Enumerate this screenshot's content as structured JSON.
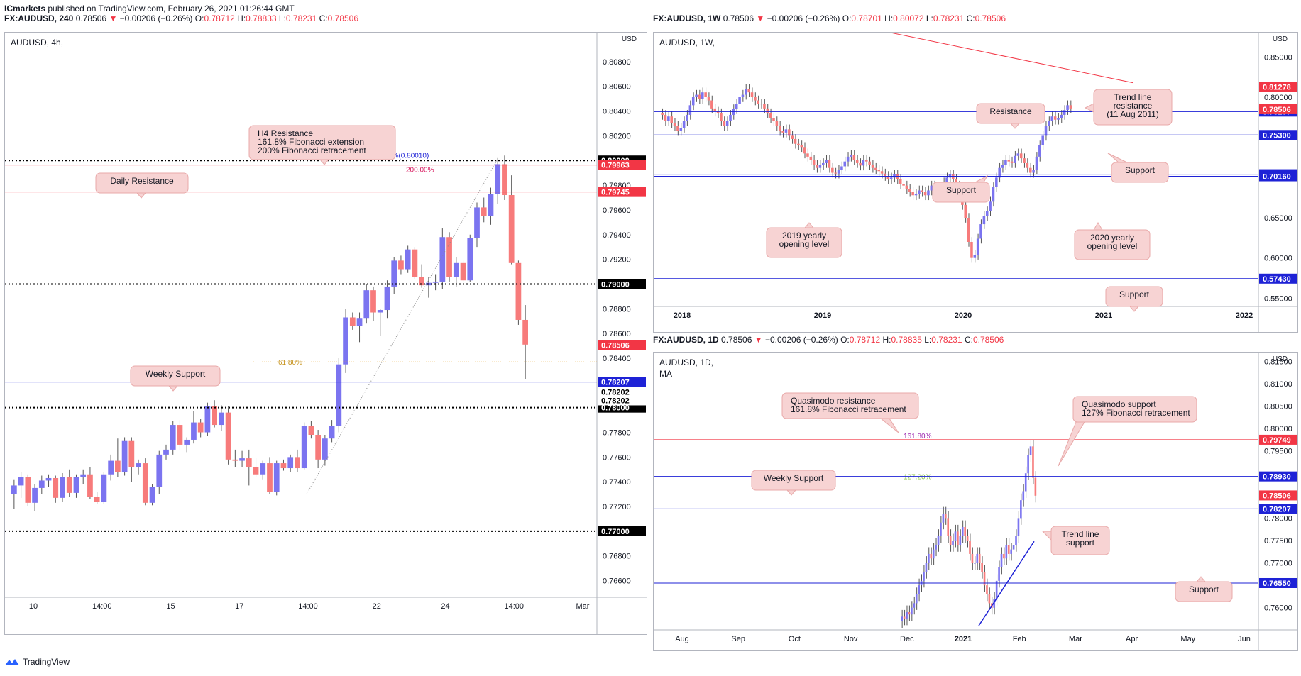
{
  "header": {
    "publisher": "ICmarkets",
    "published_text": "published on TradingView.com, February 26, 2021 01:26:44 GMT"
  },
  "footer": {
    "brand": "TradingView"
  },
  "colors": {
    "up": "#7b74f0",
    "down": "#f77b7b",
    "support_line": "#1e22d6",
    "resistance_line": "#f23645",
    "callout_bg": "#f7d3d3",
    "callout_border": "#e8a9a9",
    "price_red": "#f23645",
    "price_blue": "#1e22d6",
    "price_black": "#000000"
  },
  "chart_data": [
    {
      "id": "h4",
      "type": "candlestick",
      "header": {
        "symbol": "FX:AUDUSD, 240",
        "last": "0.78506",
        "change": "−0.00206 (−0.26%)",
        "open": "0.78712",
        "high": "0.78833",
        "low": "0.78231",
        "close": "0.78506"
      },
      "legend": "AUDUSD, 4h,",
      "currency": "USD",
      "ylim": [
        0.765,
        0.81
      ],
      "x_ticks": [
        "10",
        "14:00",
        "15",
        "17",
        "14:00",
        "22",
        "24",
        "14:00",
        "Mar"
      ],
      "y_ticks": [
        "0.80800",
        "0.80600",
        "0.80400",
        "0.80200",
        "0.79800",
        "0.79600",
        "0.79400",
        "0.79200",
        "0.78800",
        "0.78600",
        "0.78400",
        "0.78200",
        "0.77800",
        "0.77600",
        "0.77400",
        "0.77200",
        "0.76800",
        "0.76600"
      ],
      "candles": [
        [
          0.773,
          0.7742,
          0.7718,
          0.7737
        ],
        [
          0.7737,
          0.7748,
          0.7727,
          0.7744
        ],
        [
          0.7744,
          0.7746,
          0.772,
          0.7723
        ],
        [
          0.7723,
          0.7738,
          0.7716,
          0.7735
        ],
        [
          0.7735,
          0.7745,
          0.773,
          0.7741
        ],
        [
          0.7741,
          0.7746,
          0.7736,
          0.7743
        ],
        [
          0.7743,
          0.7745,
          0.7723,
          0.7727
        ],
        [
          0.7727,
          0.7747,
          0.7724,
          0.7744
        ],
        [
          0.7744,
          0.775,
          0.7728,
          0.7731
        ],
        [
          0.7731,
          0.7746,
          0.7727,
          0.7744
        ],
        [
          0.7744,
          0.775,
          0.7738,
          0.7746
        ],
        [
          0.7746,
          0.7752,
          0.7726,
          0.7728
        ],
        [
          0.7728,
          0.7732,
          0.7722,
          0.7724
        ],
        [
          0.7724,
          0.7748,
          0.7722,
          0.7746
        ],
        [
          0.7746,
          0.7762,
          0.7741,
          0.7757
        ],
        [
          0.7757,
          0.7775,
          0.7744,
          0.7748
        ],
        [
          0.7748,
          0.7776,
          0.7745,
          0.7773
        ],
        [
          0.7773,
          0.7776,
          0.774,
          0.7752
        ],
        [
          0.7752,
          0.7758,
          0.7746,
          0.7755
        ],
        [
          0.7755,
          0.7759,
          0.7721,
          0.7723
        ],
        [
          0.7723,
          0.7738,
          0.7721,
          0.7736
        ],
        [
          0.7736,
          0.7765,
          0.773,
          0.7762
        ],
        [
          0.7762,
          0.777,
          0.7758,
          0.7766
        ],
        [
          0.7766,
          0.7789,
          0.7762,
          0.7786
        ],
        [
          0.7786,
          0.779,
          0.7766,
          0.777
        ],
        [
          0.777,
          0.7776,
          0.7764,
          0.7774
        ],
        [
          0.7774,
          0.7797,
          0.7771,
          0.7788
        ],
        [
          0.7788,
          0.7791,
          0.7776,
          0.778
        ],
        [
          0.778,
          0.7804,
          0.7777,
          0.7801
        ],
        [
          0.7801,
          0.7806,
          0.7784,
          0.7786
        ],
        [
          0.7786,
          0.7802,
          0.7781,
          0.7796
        ],
        [
          0.7796,
          0.7801,
          0.7754,
          0.7758
        ],
        [
          0.7758,
          0.7766,
          0.7752,
          0.7757
        ],
        [
          0.7757,
          0.7765,
          0.7752,
          0.7759
        ],
        [
          0.7759,
          0.7766,
          0.7737,
          0.7752
        ],
        [
          0.7752,
          0.7759,
          0.7744,
          0.7746
        ],
        [
          0.7746,
          0.7757,
          0.7742,
          0.7755
        ],
        [
          0.7755,
          0.776,
          0.773,
          0.7732
        ],
        [
          0.7732,
          0.7757,
          0.7729,
          0.7755
        ],
        [
          0.7755,
          0.7758,
          0.7749,
          0.7751
        ],
        [
          0.7751,
          0.7762,
          0.7748,
          0.776
        ],
        [
          0.776,
          0.7766,
          0.7748,
          0.7751
        ],
        [
          0.7751,
          0.7788,
          0.775,
          0.7785
        ],
        [
          0.7785,
          0.7789,
          0.7775,
          0.7778
        ],
        [
          0.7778,
          0.7782,
          0.7751,
          0.7758
        ],
        [
          0.7758,
          0.7778,
          0.7753,
          0.7775
        ],
        [
          0.7775,
          0.779,
          0.7772,
          0.7785
        ],
        [
          0.7785,
          0.784,
          0.778,
          0.7835
        ],
        [
          0.7835,
          0.788,
          0.7828,
          0.7873
        ],
        [
          0.7873,
          0.7877,
          0.7863,
          0.7866
        ],
        [
          0.7866,
          0.7877,
          0.7853,
          0.7872
        ],
        [
          0.7872,
          0.79,
          0.7868,
          0.7895
        ],
        [
          0.7895,
          0.7898,
          0.787,
          0.7877
        ],
        [
          0.7877,
          0.788,
          0.7858,
          0.7879
        ],
        [
          0.7879,
          0.7903,
          0.7872,
          0.7898
        ],
        [
          0.7898,
          0.7922,
          0.7892,
          0.7919
        ],
        [
          0.7919,
          0.7923,
          0.7908,
          0.7912
        ],
        [
          0.7912,
          0.7931,
          0.7909,
          0.7928
        ],
        [
          0.7928,
          0.793,
          0.7904,
          0.7906
        ],
        [
          0.7906,
          0.7916,
          0.7897,
          0.7899
        ],
        [
          0.7899,
          0.7906,
          0.7889,
          0.7901
        ],
        [
          0.7901,
          0.7908,
          0.7895,
          0.7902
        ],
        [
          0.7902,
          0.7945,
          0.7896,
          0.7938
        ],
        [
          0.7938,
          0.7942,
          0.7902,
          0.7906
        ],
        [
          0.7906,
          0.7922,
          0.7898,
          0.7917
        ],
        [
          0.7917,
          0.7919,
          0.7902,
          0.7903
        ],
        [
          0.7903,
          0.794,
          0.7902,
          0.7937
        ],
        [
          0.7937,
          0.7966,
          0.793,
          0.7962
        ],
        [
          0.7962,
          0.797,
          0.795,
          0.7955
        ],
        [
          0.7955,
          0.7978,
          0.7948,
          0.7973
        ],
        [
          0.7973,
          0.8002,
          0.7965,
          0.7997
        ],
        [
          0.7997,
          0.8004,
          0.7968,
          0.7972
        ],
        [
          0.7972,
          0.7988,
          0.7916,
          0.7917
        ],
        [
          0.7917,
          0.7919,
          0.7867,
          0.7871
        ],
        [
          0.7871,
          0.7883,
          0.7823,
          0.7851
        ]
      ],
      "levels": [
        {
          "value": 0.8,
          "style": "dotted",
          "color": "black",
          "tag": "0.80000"
        },
        {
          "value": 0.79963,
          "style": "solid",
          "color": "red",
          "tag": "0.79963"
        },
        {
          "value": 0.79745,
          "style": "solid",
          "color": "red",
          "tag": "0.79745"
        },
        {
          "value": 0.79,
          "style": "dotted",
          "color": "black",
          "tag": "0.79000"
        },
        {
          "value": 0.78207,
          "style": "solid",
          "color": "blue",
          "tag": "0.78207"
        },
        {
          "value": 0.78,
          "style": "dotted",
          "color": "black",
          "tag": "0.78000"
        },
        {
          "value": 0.77,
          "style": "dotted",
          "color": "black",
          "tag": "0.77000"
        }
      ],
      "extra_tags": [
        {
          "value": 0.78506,
          "color": "red",
          "text": "0.78506"
        },
        {
          "value": 0.78202,
          "color": "black",
          "text": "0.78202",
          "offset": 13
        },
        {
          "value": 0.78202,
          "color": "black",
          "text": "0.78202",
          "offset": 25
        }
      ],
      "fib_labels": {
        "ext": "161.80%(0.80010)",
        "ret": "200.00%",
        "gold": "61.80%"
      },
      "annotations": [
        {
          "id": "h4-resistance",
          "lines": [
            "H4 Resistance",
            "161.8% Fibonacci extension",
            "200% Fibonacci retracement"
          ]
        },
        {
          "id": "daily-resistance",
          "lines": [
            "Daily Resistance"
          ]
        },
        {
          "id": "weekly-support",
          "lines": [
            "Weekly Support"
          ]
        }
      ]
    },
    {
      "id": "weekly",
      "type": "candlestick",
      "header": {
        "symbol": "FX:AUDUSD, 1W",
        "last": "0.78506",
        "change": "−0.00206 (−0.26%)",
        "open": "0.78701",
        "high": "0.80072",
        "low": "0.78231",
        "close": "0.78506"
      },
      "legend": "AUDUSD, 1W,",
      "currency": "USD",
      "ylim": [
        0.545,
        0.875
      ],
      "x_ticks": [
        "2018",
        "2019",
        "2020",
        "2021",
        "2022"
      ],
      "y_ticks": [
        "0.85000",
        "0.80000",
        "0.75000",
        "0.65000",
        "0.60000",
        "0.55000"
      ],
      "path": [
        0.78,
        0.778,
        0.77,
        0.776,
        0.768,
        0.764,
        0.758,
        0.762,
        0.77,
        0.778,
        0.79,
        0.8,
        0.803,
        0.798,
        0.806,
        0.8,
        0.796,
        0.786,
        0.782,
        0.78,
        0.77,
        0.764,
        0.77,
        0.778,
        0.785,
        0.792,
        0.8,
        0.803,
        0.81,
        0.806,
        0.8,
        0.796,
        0.792,
        0.792,
        0.786,
        0.78,
        0.774,
        0.77,
        0.764,
        0.758,
        0.756,
        0.76,
        0.752,
        0.748,
        0.742,
        0.74,
        0.738,
        0.73,
        0.726,
        0.722,
        0.716,
        0.712,
        0.716,
        0.718,
        0.722,
        0.712,
        0.706,
        0.705,
        0.71,
        0.714,
        0.72,
        0.726,
        0.728,
        0.722,
        0.718,
        0.715,
        0.722,
        0.72,
        0.716,
        0.712,
        0.71,
        0.708,
        0.705,
        0.702,
        0.698,
        0.7,
        0.704,
        0.698,
        0.692,
        0.69,
        0.686,
        0.682,
        0.678,
        0.68,
        0.684,
        0.682,
        0.678,
        0.684,
        0.69,
        0.688,
        0.684,
        0.686,
        0.694,
        0.7,
        0.704,
        0.698,
        0.69,
        0.68,
        0.666,
        0.65,
        0.62,
        0.6,
        0.604,
        0.624,
        0.642,
        0.652,
        0.658,
        0.67,
        0.688,
        0.7,
        0.712,
        0.716,
        0.722,
        0.72,
        0.718,
        0.727,
        0.73,
        0.724,
        0.718,
        0.712,
        0.706,
        0.71,
        0.726,
        0.74,
        0.752,
        0.764,
        0.77,
        0.776,
        0.772,
        0.774,
        0.778,
        0.784,
        0.79,
        0.786
      ],
      "levels": [
        {
          "value": 0.81278,
          "style": "solid",
          "color": "red",
          "tag": "0.81278"
        },
        {
          "value": 0.78207,
          "style": "solid",
          "color": "blue",
          "tag": "0.78207"
        },
        {
          "value": 0.753,
          "style": "solid",
          "color": "blue",
          "tag": "0.75300"
        },
        {
          "value": 0.7042,
          "style": "solid",
          "color": "blue",
          "tag": "0.70420"
        },
        {
          "value": 0.7016,
          "style": "solid",
          "color": "blue",
          "tag": "0.70160"
        },
        {
          "value": 0.5743,
          "style": "solid",
          "color": "blue",
          "tag": "0.57430"
        }
      ],
      "extra_tags": [
        {
          "value": 0.78506,
          "color": "red",
          "text": "0.78506"
        }
      ],
      "annotations": [
        {
          "id": "weekly-resistance",
          "lines": [
            "Resistance"
          ]
        },
        {
          "id": "trend-line-resistance",
          "lines": [
            "Trend line",
            "resistance",
            "(11 Aug 2011)"
          ]
        },
        {
          "id": "weekly-support-right",
          "lines": [
            "Support"
          ]
        },
        {
          "id": "weekly-support-left",
          "lines": [
            "Support"
          ]
        },
        {
          "id": "yearly-2019",
          "lines": [
            "2019 yearly",
            "opening level"
          ]
        },
        {
          "id": "yearly-2020",
          "lines": [
            "2020 yearly",
            "opening level"
          ]
        },
        {
          "id": "weekly-support-bottom",
          "lines": [
            "Support"
          ]
        }
      ]
    },
    {
      "id": "daily",
      "type": "candlestick",
      "header": {
        "symbol": "FX:AUDUSD, 1D",
        "last": "0.78506",
        "change": "−0.00206 (−0.26%)",
        "open": "0.78712",
        "high": "0.78835",
        "low": "0.78231",
        "close": "0.78506"
      },
      "legend": "AUDUSD, 1D,",
      "legend2": "MA",
      "currency": "USD",
      "ylim": [
        0.756,
        0.816
      ],
      "x_ticks": [
        "Aug",
        "Sep",
        "Oct",
        "Nov",
        "Dec",
        "2021",
        "Feb",
        "Mar",
        "Apr",
        "May",
        "Jun"
      ],
      "y_ticks": [
        "0.81500",
        "0.81000",
        "0.80500",
        "0.80000",
        "0.79500",
        "0.78000",
        "0.77500",
        "0.77000",
        "0.76000"
      ],
      "path": [
        0.757,
        0.758,
        0.7576,
        0.759,
        0.7585,
        0.76,
        0.761,
        0.763,
        0.765,
        0.766,
        0.768,
        0.77,
        0.772,
        0.771,
        0.773,
        0.774,
        0.776,
        0.779,
        0.781,
        0.78,
        0.776,
        0.774,
        0.775,
        0.777,
        0.774,
        0.776,
        0.778,
        0.776,
        0.775,
        0.772,
        0.77,
        0.77,
        0.772,
        0.77,
        0.768,
        0.765,
        0.763,
        0.761,
        0.76,
        0.762,
        0.766,
        0.769,
        0.772,
        0.771,
        0.774,
        0.772,
        0.773,
        0.774,
        0.776,
        0.78,
        0.784,
        0.786,
        0.79,
        0.794,
        0.796,
        0.789,
        0.785
      ],
      "levels": [
        {
          "value": 0.79749,
          "style": "solid",
          "color": "red",
          "tag": "0.79749"
        },
        {
          "value": 0.7893,
          "style": "solid",
          "color": "blue",
          "tag": "0.78930"
        },
        {
          "value": 0.78207,
          "style": "solid",
          "color": "blue",
          "tag": "0.78207"
        },
        {
          "value": 0.7655,
          "style": "solid",
          "color": "blue",
          "tag": "0.76550"
        }
      ],
      "extra_tags": [
        {
          "value": 0.78506,
          "color": "red",
          "text": "0.78506"
        }
      ],
      "fib_labels": {
        "ext": "161.80%",
        "ret": "127.20%"
      },
      "annotations": [
        {
          "id": "quasimodo-resistance",
          "lines": [
            "Quasimodo resistance",
            "161.8% Fibonacci retracement"
          ]
        },
        {
          "id": "quasimodo-support",
          "lines": [
            "Quasimodo support",
            "127% Fibonacci retracement"
          ]
        },
        {
          "id": "daily-weekly-support",
          "lines": [
            "Weekly Support"
          ]
        },
        {
          "id": "trend-line-support",
          "lines": [
            "Trend line",
            "support"
          ]
        },
        {
          "id": "daily-support-bottom",
          "lines": [
            "Support"
          ]
        }
      ]
    }
  ]
}
